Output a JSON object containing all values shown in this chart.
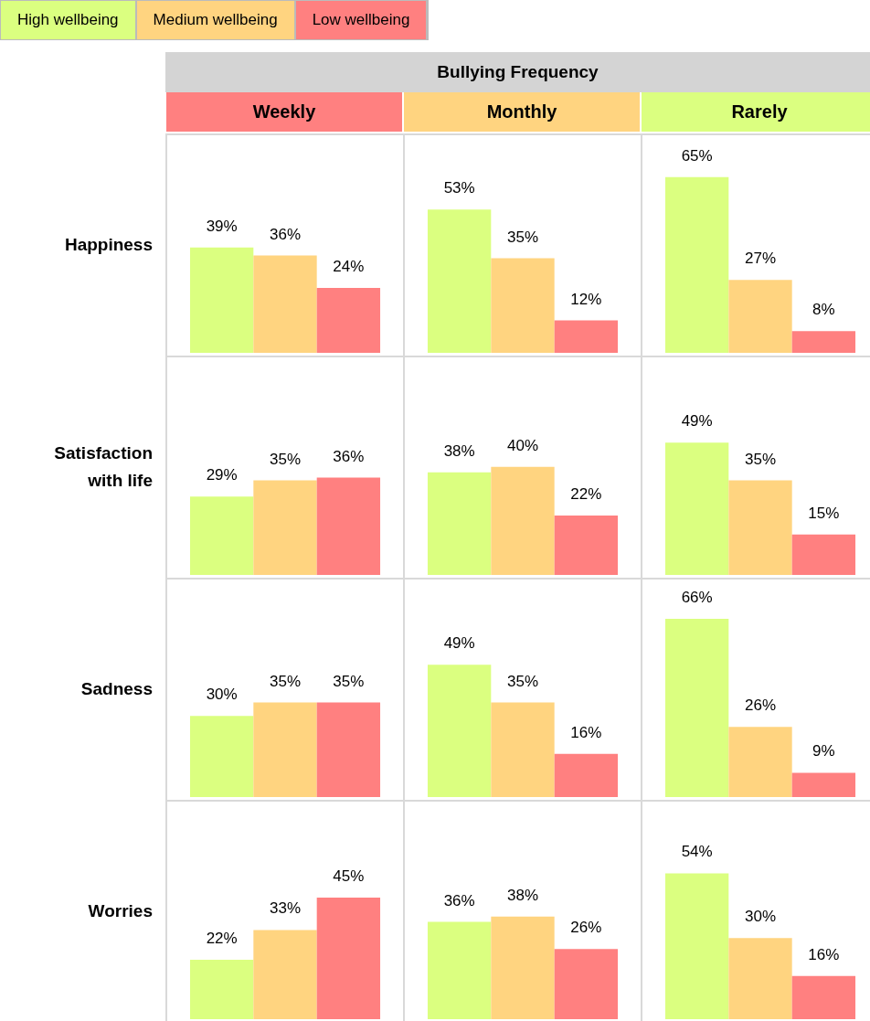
{
  "chart_data": [
    {
      "type": "other",
      "title": "Bullying Frequency"
    },
    {
      "type": "bar",
      "title": "Weekly",
      "ylabel": "Happiness",
      "legend": "top left",
      "categories": [
        null
      ],
      "series": [
        {
          "name": "High wellbeing",
          "color": "#dbff80",
          "values": [
            39
          ],
          "value_labels": [
            "39%"
          ]
        },
        {
          "name": "Medium wellbeing",
          "color": "#ffd480",
          "values": [
            36
          ],
          "value_labels": [
            "36%"
          ]
        },
        {
          "name": "Low wellbeing",
          "color": "#ff8080",
          "values": [
            24
          ],
          "value_labels": [
            "24%"
          ]
        }
      ]
    },
    {
      "type": "bar",
      "title": "Monthly",
      "categories": [
        null
      ],
      "series": [
        {
          "color": "#dbff80",
          "values": [
            53
          ],
          "value_labels": [
            "53%"
          ]
        },
        {
          "color": "#ffd480",
          "values": [
            35
          ],
          "value_labels": [
            "35%"
          ]
        },
        {
          "color": "#ff8080",
          "values": [
            12
          ],
          "value_labels": [
            "12%"
          ]
        }
      ]
    },
    {
      "type": "bar",
      "title": "Rarely",
      "categories": [
        null
      ],
      "series": [
        {
          "color": "#dbff80",
          "values": [
            65
          ],
          "value_labels": [
            "65%"
          ]
        },
        {
          "color": "#ffd480",
          "values": [
            27
          ],
          "value_labels": [
            "27%"
          ]
        },
        {
          "color": "#ff8080",
          "values": [
            8
          ],
          "value_labels": [
            "8%"
          ]
        }
      ]
    },
    {
      "type": "bar",
      "ylabel": "Satisfaction with life",
      "categories": [
        null
      ],
      "series": [
        {
          "color": "#dbff80",
          "values": [
            29
          ],
          "value_labels": [
            "29%"
          ]
        },
        {
          "color": "#ffd480",
          "values": [
            35
          ],
          "value_labels": [
            "35%"
          ]
        },
        {
          "color": "#ff8080",
          "values": [
            36
          ],
          "value_labels": [
            "36%"
          ]
        }
      ]
    },
    {
      "type": "bar",
      "categories": [
        null
      ],
      "series": [
        {
          "color": "#dbff80",
          "values": [
            38
          ],
          "value_labels": [
            "38%"
          ]
        },
        {
          "color": "#ffd480",
          "values": [
            40
          ],
          "value_labels": [
            "40%"
          ]
        },
        {
          "color": "#ff8080",
          "values": [
            22
          ],
          "value_labels": [
            "22%"
          ]
        }
      ]
    },
    {
      "type": "bar",
      "categories": [
        null
      ],
      "series": [
        {
          "color": "#dbff80",
          "values": [
            49
          ],
          "value_labels": [
            "49%"
          ]
        },
        {
          "color": "#ffd480",
          "values": [
            35
          ],
          "value_labels": [
            "35%"
          ]
        },
        {
          "color": "#ff8080",
          "values": [
            15
          ],
          "value_labels": [
            "15%"
          ]
        }
      ]
    },
    {
      "type": "bar",
      "ylabel": "Sadness",
      "categories": [
        null
      ],
      "series": [
        {
          "color": "#dbff80",
          "values": [
            30
          ],
          "value_labels": [
            "30%"
          ]
        },
        {
          "color": "#ffd480",
          "values": [
            35
          ],
          "value_labels": [
            "35%"
          ]
        },
        {
          "color": "#ff8080",
          "values": [
            35
          ],
          "value_labels": [
            "35%"
          ]
        }
      ]
    },
    {
      "type": "bar",
      "categories": [
        null
      ],
      "series": [
        {
          "color": "#dbff80",
          "values": [
            49
          ],
          "value_labels": [
            "49%"
          ]
        },
        {
          "color": "#ffd480",
          "values": [
            35
          ],
          "value_labels": [
            "35%"
          ]
        },
        {
          "color": "#ff8080",
          "values": [
            16
          ],
          "value_labels": [
            "16%"
          ]
        }
      ]
    },
    {
      "type": "bar",
      "categories": [
        null
      ],
      "series": [
        {
          "color": "#dbff80",
          "values": [
            66
          ],
          "value_labels": [
            "66%"
          ]
        },
        {
          "color": "#ffd480",
          "values": [
            26
          ],
          "value_labels": [
            "26%"
          ]
        },
        {
          "color": "#ff8080",
          "values": [
            9
          ],
          "value_labels": [
            "9%"
          ]
        }
      ]
    },
    {
      "type": "bar",
      "ylabel": "Worries",
      "categories": [
        null
      ],
      "series": [
        {
          "color": "#dbff80",
          "values": [
            22
          ],
          "value_labels": [
            "22%"
          ]
        },
        {
          "color": "#ffd480",
          "values": [
            33
          ],
          "value_labels": [
            "33%"
          ]
        },
        {
          "color": "#ff8080",
          "values": [
            45
          ],
          "value_labels": [
            "45%"
          ]
        }
      ]
    },
    {
      "type": "bar",
      "categories": [
        null
      ],
      "series": [
        {
          "color": "#dbff80",
          "values": [
            36
          ],
          "value_labels": [
            "36%"
          ]
        },
        {
          "color": "#ffd480",
          "values": [
            38
          ],
          "value_labels": [
            "38%"
          ]
        },
        {
          "color": "#ff8080",
          "values": [
            26
          ],
          "value_labels": [
            "26%"
          ]
        }
      ]
    },
    {
      "type": "bar",
      "categories": [
        null
      ],
      "series": [
        {
          "color": "#dbff80",
          "values": [
            54
          ],
          "value_labels": [
            "54%"
          ]
        },
        {
          "color": "#ffd480",
          "values": [
            30
          ],
          "value_labels": [
            "30%"
          ]
        },
        {
          "color": "#ff8080",
          "values": [
            16
          ],
          "value_labels": [
            "16%"
          ]
        }
      ]
    }
  ]
}
